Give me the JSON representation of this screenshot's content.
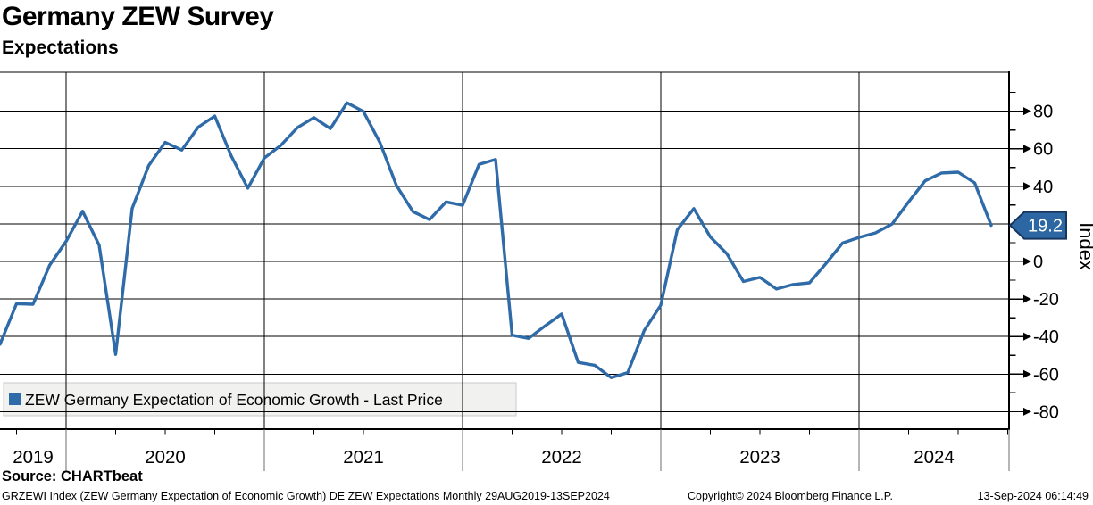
{
  "header": {
    "title": "Germany ZEW Survey",
    "subtitle": "Expectations"
  },
  "legend": {
    "label": "ZEW Germany Expectation of Economic Growth - Last Price",
    "marker_color": "#2e6ba8"
  },
  "last_price": {
    "label": "19.2",
    "badge_fill": "#2c67a3",
    "badge_border": "#16365d",
    "text_color": "#ffffff"
  },
  "y_axis": {
    "label": "Index",
    "tick_min": -80,
    "tick_max": 80,
    "tick_step": 20,
    "minor_step": 10
  },
  "x_axis": {
    "years": [
      "2019",
      "2020",
      "2021",
      "2022",
      "2023",
      "2024"
    ]
  },
  "footer": {
    "source": "Source: CHARTbeat",
    "description": "GRZEWI Index (ZEW Germany Expectation of Economic Growth) DE ZEW Expectations  Monthly 29AUG2019-13SEP2024",
    "copyright": "Copyright© 2024 Bloomberg Finance L.P.",
    "timestamp": "13-Sep-2024 06:14:49"
  },
  "chart_data": {
    "type": "line",
    "title": "Germany ZEW Survey - Expectations",
    "ylabel": "Index",
    "ylim": [
      -90,
      101
    ],
    "yticks": [
      -80,
      -60,
      -40,
      -20,
      0,
      20,
      40,
      60,
      80
    ],
    "grid": true,
    "legend_position": "bottom-left",
    "last_price": 19.2,
    "x": [
      "2019-08",
      "2019-09",
      "2019-10",
      "2019-11",
      "2019-12",
      "2020-01",
      "2020-02",
      "2020-03",
      "2020-04",
      "2020-05",
      "2020-06",
      "2020-07",
      "2020-08",
      "2020-09",
      "2020-10",
      "2020-11",
      "2020-12",
      "2021-01",
      "2021-02",
      "2021-03",
      "2021-04",
      "2021-05",
      "2021-06",
      "2021-07",
      "2021-08",
      "2021-09",
      "2021-10",
      "2021-11",
      "2021-12",
      "2022-01",
      "2022-02",
      "2022-03",
      "2022-04",
      "2022-05",
      "2022-06",
      "2022-07",
      "2022-08",
      "2022-09",
      "2022-10",
      "2022-11",
      "2022-12",
      "2023-01",
      "2023-02",
      "2023-03",
      "2023-04",
      "2023-05",
      "2023-06",
      "2023-07",
      "2023-08",
      "2023-09",
      "2023-10",
      "2023-11",
      "2023-12",
      "2024-01",
      "2024-02",
      "2024-03",
      "2024-04",
      "2024-05",
      "2024-06",
      "2024-07",
      "2024-08"
    ],
    "series": [
      {
        "name": "ZEW Germany Expectation of Economic Growth - Last Price",
        "color": "#2e6ba8",
        "values": [
          -44.1,
          -22.5,
          -22.8,
          -2.1,
          10.7,
          26.7,
          8.7,
          -49.5,
          28.2,
          51.0,
          63.4,
          59.3,
          71.5,
          77.4,
          56.1,
          39.0,
          55.0,
          61.8,
          71.2,
          76.6,
          70.7,
          84.4,
          79.8,
          63.3,
          40.4,
          26.5,
          22.3,
          31.7,
          29.9,
          51.7,
          54.3,
          -39.3,
          -41.0,
          -34.3,
          -28.0,
          -53.8,
          -55.3,
          -61.9,
          -59.2,
          -36.7,
          -23.3,
          16.9,
          28.1,
          13.0,
          4.1,
          -10.7,
          -8.5,
          -14.7,
          -12.3,
          -11.4,
          -1.1,
          9.8,
          12.8,
          15.2,
          19.9,
          31.7,
          42.9,
          47.1,
          47.5,
          41.8,
          19.2
        ]
      }
    ]
  }
}
